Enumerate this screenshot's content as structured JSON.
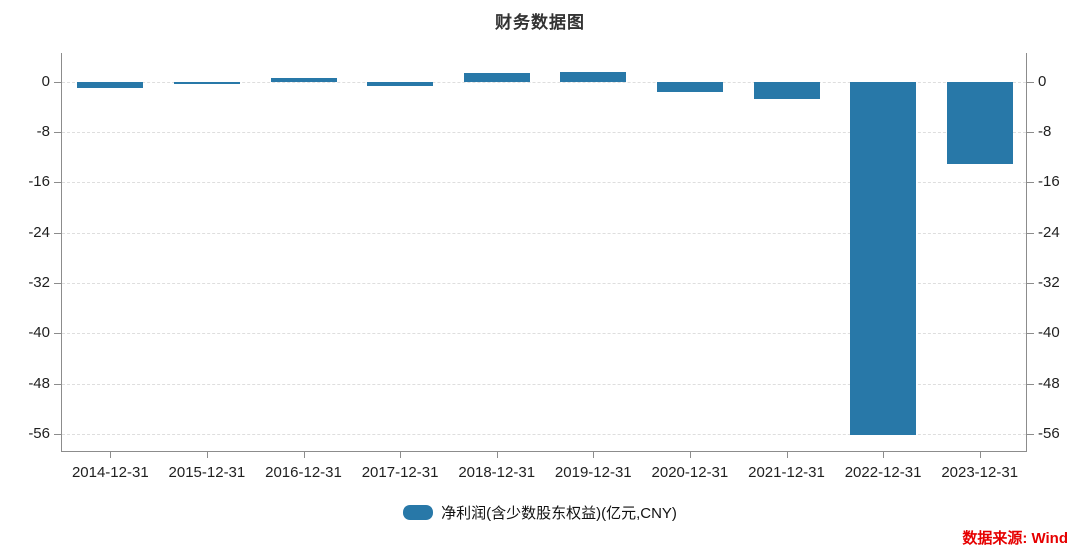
{
  "title": "财务数据图",
  "legend": {
    "label": "净利润(含少数股东权益)(亿元,CNY)"
  },
  "source_note": "数据来源: Wind",
  "colors": {
    "bar": "#2878a8",
    "source_text": "#e60000",
    "axis": "#8c8c8c",
    "grid": "#dedede",
    "text": "#1f1f1f",
    "title_text": "#333333"
  },
  "chart_data": {
    "type": "bar",
    "title": "财务数据图",
    "xlabel": "",
    "ylabel": "净利润(含少数股东权益)(亿元,CNY)",
    "categories": [
      "2014-12-31",
      "2015-12-31",
      "2016-12-31",
      "2017-12-31",
      "2018-12-31",
      "2019-12-31",
      "2020-12-31",
      "2021-12-31",
      "2022-12-31",
      "2023-12-31"
    ],
    "series": [
      {
        "name": "净利润(含少数股东权益)(亿元,CNY)",
        "values": [
          -1.0,
          -0.4,
          0.6,
          -0.7,
          1.4,
          1.6,
          -1.6,
          -2.7,
          -56.2,
          -13.0
        ]
      }
    ],
    "yticks": [
      0,
      -8,
      -16,
      -24,
      -32,
      -40,
      -48,
      -56
    ],
    "ylim": [
      -58.9,
      4.6
    ],
    "grid": true,
    "legend_position": "bottom",
    "source": "数据来源: Wind"
  }
}
